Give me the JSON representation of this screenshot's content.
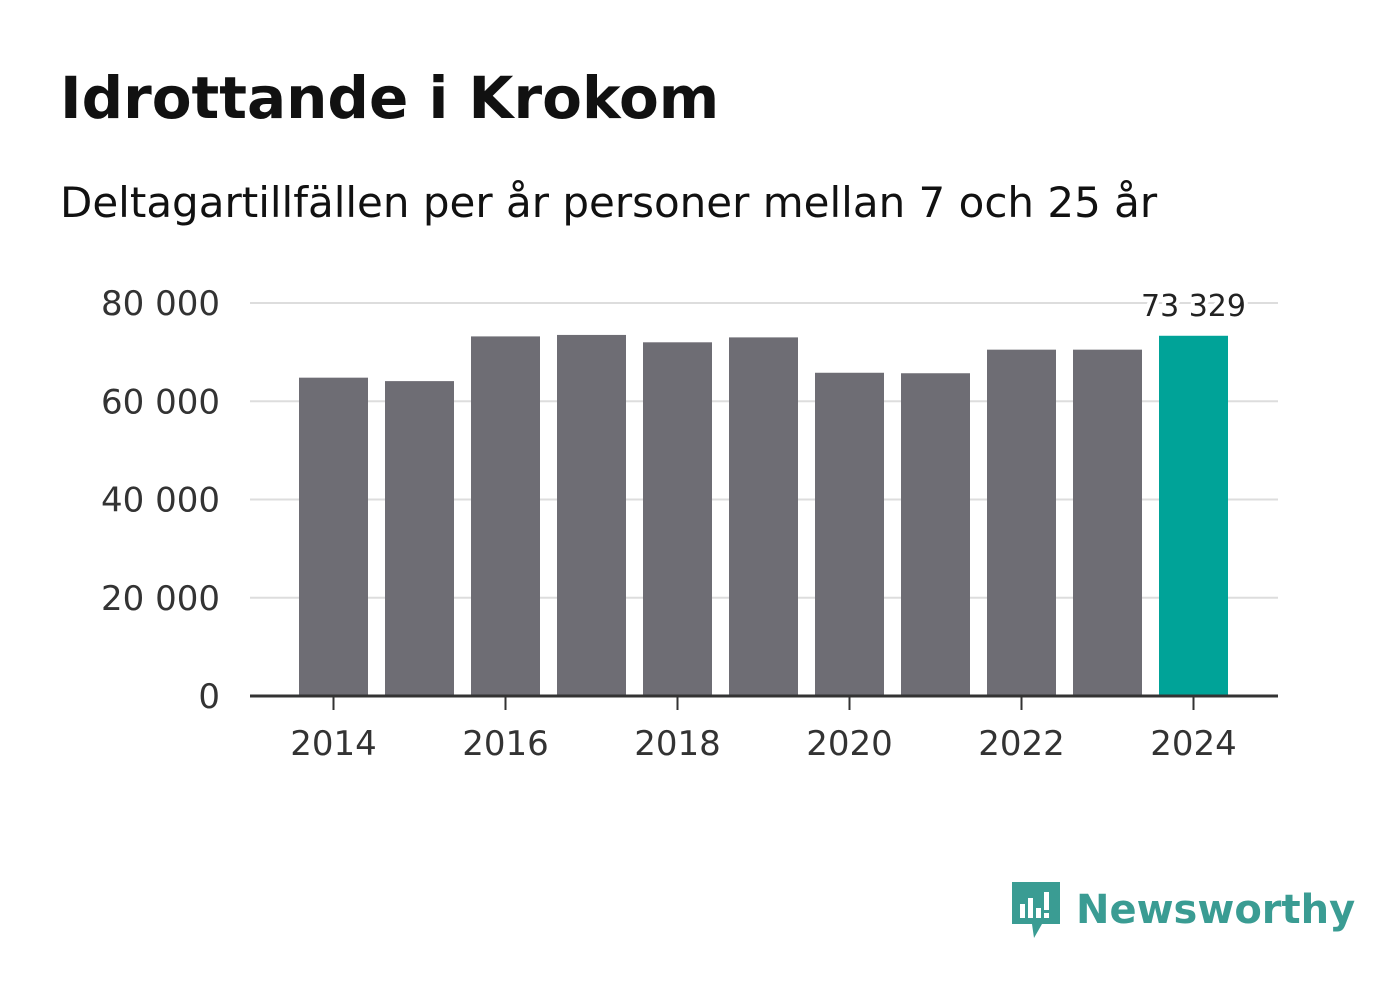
{
  "title": "Idrottande i Krokom",
  "subtitle": "Deltagartillfällen per år personer mellan 7 och 25 år",
  "brand": {
    "name": "Newsworthy",
    "icon": "newsworthy-logo-icon",
    "color": "#3a9c93"
  },
  "chart_data": {
    "type": "bar",
    "title": "Idrottande i Krokom",
    "subtitle": "Deltagartillfällen per år personer mellan 7 och 25 år",
    "xlabel": "",
    "ylabel": "",
    "categories": [
      "2014",
      "2015",
      "2016",
      "2017",
      "2018",
      "2019",
      "2020",
      "2021",
      "2022",
      "2023",
      "2024"
    ],
    "values": [
      64800,
      64100,
      73200,
      73500,
      72000,
      73000,
      65800,
      65700,
      70500,
      70500,
      73329
    ],
    "ylim": [
      0,
      80000
    ],
    "yticks": [
      0,
      20000,
      40000,
      60000,
      80000
    ],
    "ytick_labels": [
      "0",
      "20 000",
      "40 000",
      "60 000",
      "80 000"
    ],
    "xtick_labels": [
      "2014",
      "2016",
      "2018",
      "2020",
      "2022",
      "2024"
    ],
    "highlight_label": "73 329",
    "highlight_category": "2024",
    "grid": true,
    "colors": {
      "bar": "#6e6d74",
      "highlight": "#00a398",
      "grid": "#dddddd",
      "axis": "#333333"
    }
  }
}
